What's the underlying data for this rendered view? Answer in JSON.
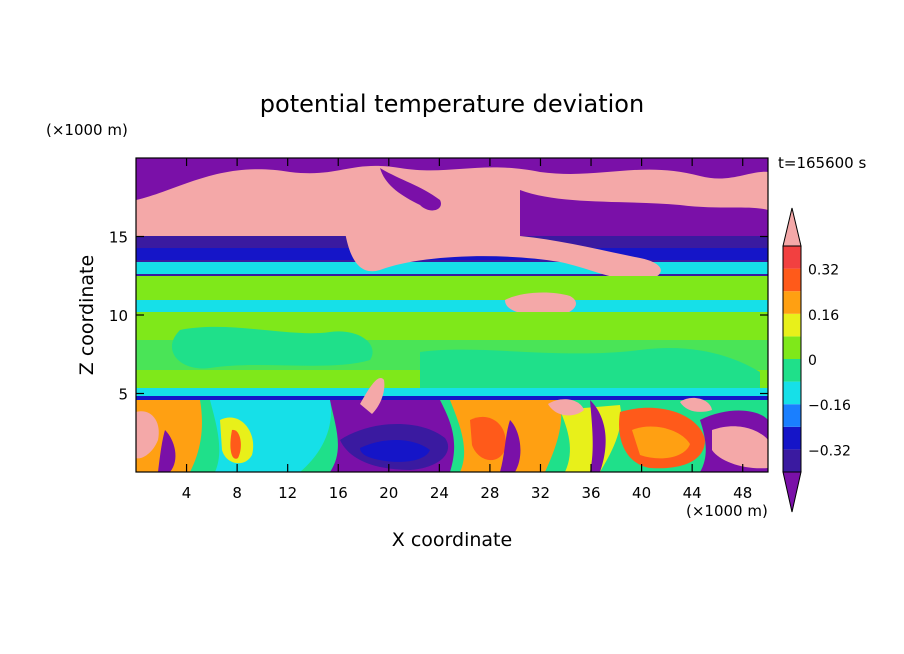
{
  "chart_data": {
    "type": "heatmap",
    "title": "potential temperature deviation",
    "xlabel": "X coordinate",
    "ylabel": "Z coordinate",
    "x_unit": "(×1000 m)",
    "y_unit": "(×1000 m)",
    "time_label": "t=165600 s",
    "xlim": [
      0,
      50
    ],
    "ylim": [
      0,
      20
    ],
    "x_ticks": [
      4,
      8,
      12,
      16,
      20,
      24,
      28,
      32,
      36,
      40,
      44,
      48
    ],
    "y_ticks": [
      5,
      10,
      15
    ],
    "colorbar": {
      "levels": [
        -0.4,
        -0.32,
        -0.24,
        -0.16,
        -0.08,
        0,
        0.08,
        0.16,
        0.24,
        0.32,
        0.4
      ],
      "labels": [
        "0.32",
        "0.16",
        "0",
        "−0.16",
        "−0.32"
      ],
      "label_values": [
        0.32,
        0.16,
        0,
        -0.16,
        -0.32
      ],
      "colors": [
        "#7a10a8",
        "#3a1aa0",
        "#1515c8",
        "#1a7fff",
        "#16e0e8",
        "#1fe08a",
        "#7fe81a",
        "#e8f01a",
        "#ffa012",
        "#ff5a1a",
        "#f24040",
        "#f4a8a8"
      ],
      "extend": "both"
    },
    "layers": [
      {
        "z_range": [
          17.5,
          20
        ],
        "value": -0.45,
        "note": "upper band"
      },
      {
        "z_range": [
          14.2,
          17.5
        ],
        "value": 0.45
      },
      {
        "z_range": [
          12.7,
          14.2
        ],
        "value": -0.3
      },
      {
        "z_range": [
          12.2,
          12.7
        ],
        "value": -0.12
      },
      {
        "z_range": [
          10.5,
          12.2
        ],
        "value": 0.05
      },
      {
        "z_range": [
          10.0,
          10.5
        ],
        "value": -0.06
      },
      {
        "z_range": [
          5.0,
          10.0
        ],
        "value": 0.04
      },
      {
        "z_range": [
          4.5,
          5.0
        ],
        "value": -0.1
      },
      {
        "z_range": [
          0,
          4.5
        ],
        "value": "mixed"
      }
    ]
  }
}
